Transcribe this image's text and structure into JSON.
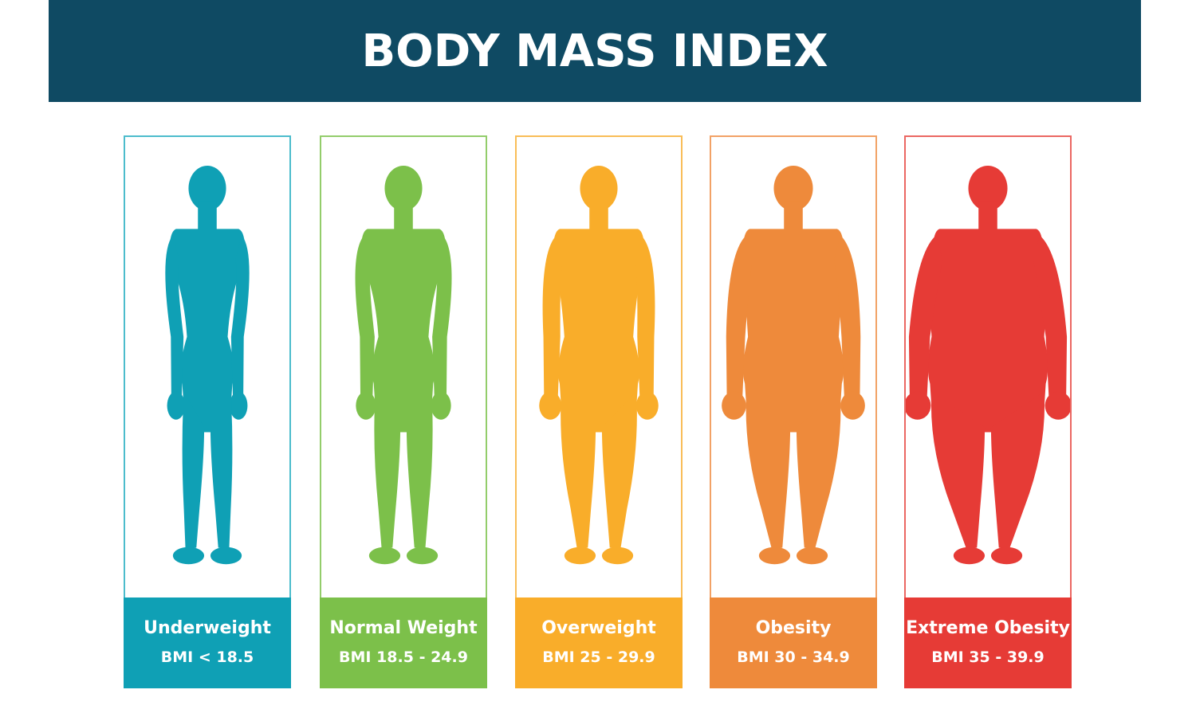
{
  "header": {
    "title": "BODY MASS INDEX"
  },
  "categories": [
    {
      "name": "Underweight",
      "range": "BMI < 18.5",
      "color": "#0fa0b5",
      "border_color": "#4cbccc",
      "icon": "underweight-body-silhouette-icon"
    },
    {
      "name": "Normal Weight",
      "range": "BMI 18.5 - 24.9",
      "color": "#7cc04a",
      "border_color": "#93cd6b",
      "icon": "normal-weight-body-silhouette-icon"
    },
    {
      "name": "Overweight",
      "range": "BMI 25 - 29.9",
      "color": "#f9ad2a",
      "border_color": "#f9bd57",
      "icon": "overweight-body-silhouette-icon"
    },
    {
      "name": "Obesity",
      "range": "BMI 30 - 34.9",
      "color": "#ee8a3b",
      "border_color": "#f2a266",
      "icon": "obesity-body-silhouette-icon"
    },
    {
      "name": "Extreme Obesity",
      "range": "BMI 35 - 39.9",
      "color": "#e63b36",
      "border_color": "#eb6762",
      "icon": "extreme-obesity-body-silhouette-icon"
    }
  ]
}
